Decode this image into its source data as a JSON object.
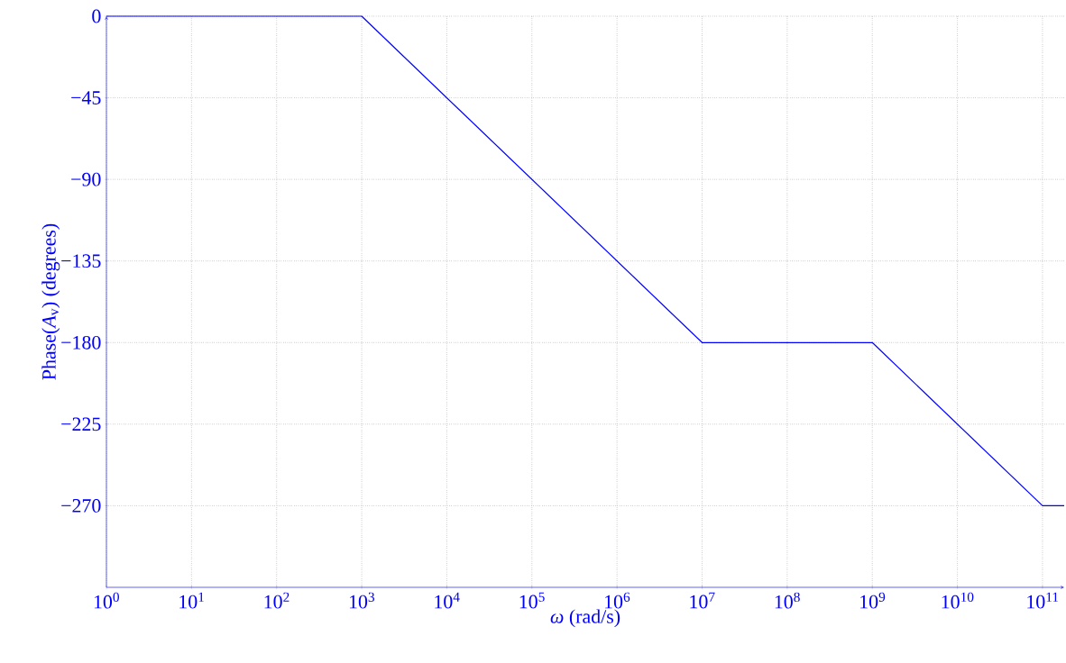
{
  "chart_data": {
    "type": "line",
    "xlabel": "*ω* (rad/s)",
    "ylabel": "Phase(*A*$_{v}$) (degrees)",
    "log": "x",
    "grid": true,
    "xlim": [
      1,
      180000000000
    ],
    "ylim": [
      -315,
      0
    ],
    "xticks": [
      {
        "value": 1,
        "label": "10$^{0}$"
      },
      {
        "value": 10,
        "label": "10$^{1}$"
      },
      {
        "value": 100,
        "label": "10$^{2}$"
      },
      {
        "value": 1000,
        "label": "10$^{3}$"
      },
      {
        "value": 10000,
        "label": "10$^{4}$"
      },
      {
        "value": 100000,
        "label": "10$^{5}$"
      },
      {
        "value": 1000000,
        "label": "10$^{6}$"
      },
      {
        "value": 10000000,
        "label": "10$^{7}$"
      },
      {
        "value": 100000000,
        "label": "10$^{8}$"
      },
      {
        "value": 1000000000,
        "label": "10$^{9}$"
      },
      {
        "value": 10000000000,
        "label": "10$^{10}$"
      },
      {
        "value": 100000000000,
        "label": "10$^{11}$"
      }
    ],
    "yticks": [
      {
        "value": 0,
        "label": "0"
      },
      {
        "value": -45,
        "label": "−45"
      },
      {
        "value": -90,
        "label": "−90"
      },
      {
        "value": -135,
        "label": "−135"
      },
      {
        "value": -180,
        "label": "−180"
      },
      {
        "value": -225,
        "label": "−225"
      },
      {
        "value": -270,
        "label": "−270"
      }
    ],
    "x": [
      1,
      1000,
      10000000,
      1000000000,
      100000000000,
      180000000000
    ],
    "series": [
      {
        "color": "#0000ff",
        "values": [
          0,
          0,
          -180,
          -180,
          -270,
          -270
        ]
      }
    ]
  }
}
